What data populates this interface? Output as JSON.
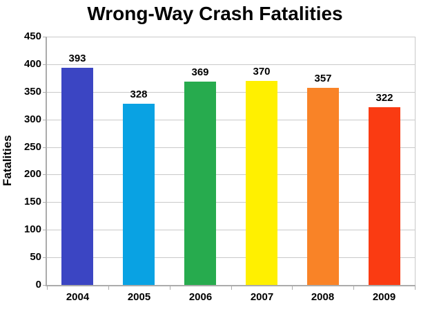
{
  "chart_data": {
    "type": "bar",
    "title": "Wrong-Way Crash Fatalities",
    "xlabel": "",
    "ylabel": "Fatalities",
    "categories": [
      "2004",
      "2005",
      "2006",
      "2007",
      "2008",
      "2009"
    ],
    "values": [
      393,
      328,
      369,
      370,
      357,
      322
    ],
    "value_labels_shown": true,
    "bar_colors": [
      "#3B45C3",
      "#09A2E3",
      "#27AB4E",
      "#FFF000",
      "#F98327",
      "#FA3B12"
    ],
    "ylim": [
      0,
      450
    ],
    "yticks": [
      0,
      50,
      100,
      150,
      200,
      250,
      300,
      350,
      400,
      450
    ],
    "grid": "horizontal",
    "legend": "none",
    "style": {
      "grid_color": "#C9C9C9",
      "axis_color": "#ABABAB",
      "text_color": "#000000",
      "background_color": "#FFFFFF"
    }
  }
}
